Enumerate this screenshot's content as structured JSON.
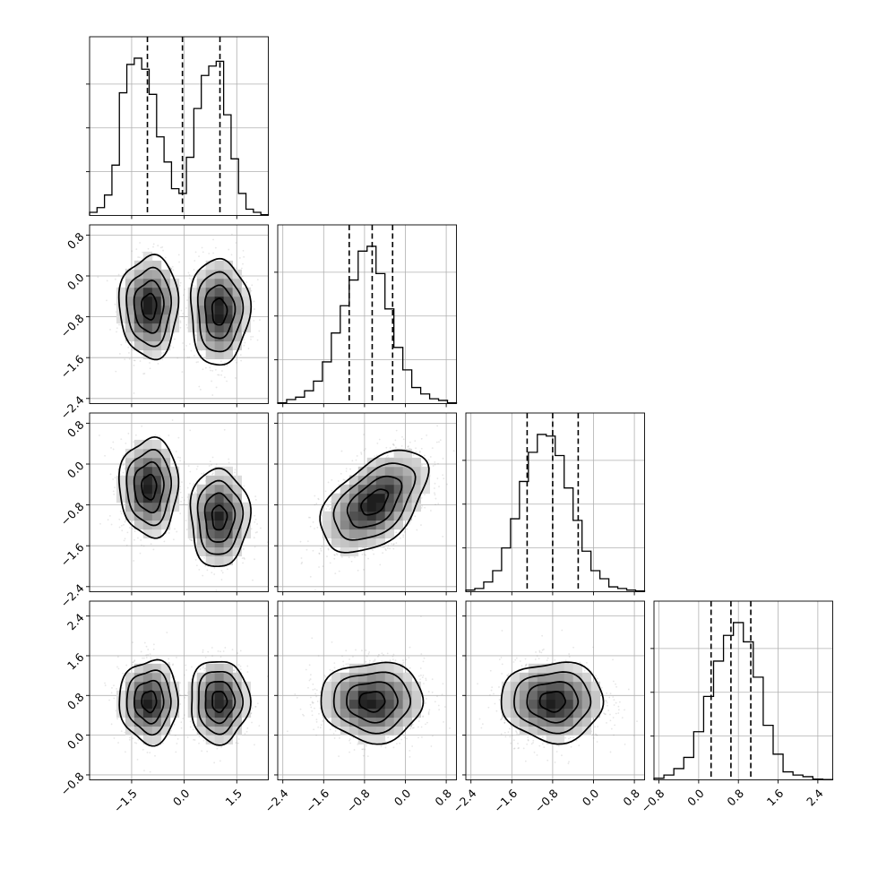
{
  "chart_data": {
    "type": "corner",
    "n_parameters": 4,
    "axis_labels": [
      "",
      "",
      "",
      ""
    ],
    "axis_ranges": [
      [
        -2.7,
        2.4
      ],
      [
        -2.5,
        1.0
      ],
      [
        -2.5,
        1.0
      ],
      [
        -0.9,
        2.7
      ]
    ],
    "ticks": [
      [
        -1.5,
        0.0,
        1.5
      ],
      [
        -2.4,
        -1.6,
        -0.8,
        0.0,
        0.8
      ],
      [
        -2.4,
        -1.6,
        -0.8,
        0.0,
        0.8
      ],
      [
        -0.8,
        0.0,
        0.8,
        1.6,
        2.4
      ]
    ],
    "tick_labels": [
      [
        "−1.5",
        "0.0",
        "1.5"
      ],
      [
        "−2.4",
        "−1.6",
        "−0.8",
        "0.0",
        "0.8"
      ],
      [
        "−2.4",
        "−1.6",
        "−0.8",
        "0.0",
        "0.8"
      ],
      [
        "−0.8",
        "0.0",
        "0.8",
        "1.6",
        "2.4"
      ]
    ],
    "histograms": [
      {
        "edges_start": -2.7,
        "edges_end": 2.4,
        "counts": [
          0.02,
          0.05,
          0.13,
          0.32,
          0.78,
          0.96,
          1.0,
          0.93,
          0.77,
          0.5,
          0.34,
          0.17,
          0.14,
          0.37,
          0.68,
          0.89,
          0.95,
          0.98,
          0.64,
          0.36,
          0.14,
          0.04,
          0.02,
          0.005
        ]
      },
      {
        "edges_start": -2.5,
        "edges_end": 1.0,
        "counts": [
          0.005,
          0.025,
          0.04,
          0.08,
          0.14,
          0.26,
          0.44,
          0.61,
          0.77,
          0.95,
          0.98,
          0.81,
          0.59,
          0.35,
          0.21,
          0.1,
          0.06,
          0.03,
          0.02,
          0.005
        ]
      },
      {
        "edges_start": -2.5,
        "edges_end": 1.0,
        "counts": [
          0.01,
          0.02,
          0.06,
          0.13,
          0.27,
          0.45,
          0.68,
          0.86,
          0.97,
          0.96,
          0.84,
          0.64,
          0.44,
          0.25,
          0.13,
          0.08,
          0.03,
          0.02,
          0.01,
          0.005
        ]
      },
      {
        "edges_start": -0.9,
        "edges_end": 2.7,
        "counts": [
          0.01,
          0.03,
          0.07,
          0.14,
          0.3,
          0.52,
          0.74,
          0.9,
          0.98,
          0.86,
          0.64,
          0.34,
          0.16,
          0.05,
          0.03,
          0.02,
          0.005,
          0.002
        ]
      }
    ],
    "quantiles": [
      [
        -1.05,
        -0.05,
        1.02
      ],
      [
        -1.1,
        -0.65,
        -0.25
      ],
      [
        -1.3,
        -0.8,
        -0.3
      ],
      [
        0.25,
        0.65,
        1.05
      ]
    ],
    "pairs": [
      {
        "x": 0,
        "y": 1,
        "modes": [
          {
            "mx": -1.0,
            "my": -0.6,
            "sx": 0.42,
            "sy": 0.5,
            "rho": 0.0
          },
          {
            "mx": 1.0,
            "my": -0.7,
            "sx": 0.42,
            "sy": 0.52,
            "rho": 0.0
          }
        ]
      },
      {
        "x": 0,
        "y": 2,
        "modes": [
          {
            "mx": -1.0,
            "my": -0.45,
            "sx": 0.42,
            "sy": 0.48,
            "rho": 0.0
          },
          {
            "mx": 1.0,
            "my": -1.05,
            "sx": 0.42,
            "sy": 0.48,
            "rho": 0.0
          }
        ]
      },
      {
        "x": 1,
        "y": 2,
        "modes": [
          {
            "mx": -0.6,
            "my": -0.75,
            "sx": 0.52,
            "sy": 0.5,
            "rho": 0.5
          }
        ]
      },
      {
        "x": 0,
        "y": 3,
        "modes": [
          {
            "mx": -1.0,
            "my": 0.68,
            "sx": 0.42,
            "sy": 0.42,
            "rho": 0.0
          },
          {
            "mx": 1.0,
            "my": 0.68,
            "sx": 0.42,
            "sy": 0.42,
            "rho": 0.0
          }
        ]
      },
      {
        "x": 1,
        "y": 3,
        "modes": [
          {
            "mx": -0.65,
            "my": 0.68,
            "sx": 0.5,
            "sy": 0.4,
            "rho": 0.0
          }
        ]
      },
      {
        "x": 2,
        "y": 3,
        "modes": [
          {
            "mx": -0.8,
            "my": 0.68,
            "sx": 0.5,
            "sy": 0.4,
            "rho": 0.0
          }
        ]
      }
    ],
    "contour_levels_sigma": [
      0.5,
      1.0,
      1.5,
      2.0
    ],
    "grid": true,
    "colors": {
      "ink": "#000000",
      "grid": "#b0b0b0",
      "scatter": "#8c8c8c",
      "density_max": "#1e1e1e"
    }
  }
}
